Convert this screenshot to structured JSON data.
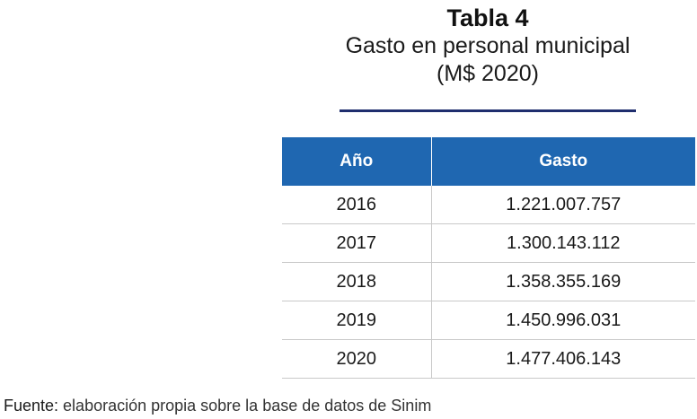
{
  "title": {
    "label": "Tabla 4",
    "subtitle": "Gasto en personal municipal",
    "unit": "(M$ 2020)"
  },
  "table": {
    "headers": [
      "Año",
      "Gasto"
    ],
    "rows": [
      {
        "year": "2016",
        "spend": "1.221.007.757"
      },
      {
        "year": "2017",
        "spend": "1.300.143.112"
      },
      {
        "year": "2018",
        "spend": "1.358.355.169"
      },
      {
        "year": "2019",
        "spend": "1.450.996.031"
      },
      {
        "year": "2020",
        "spend": "1.477.406.143"
      }
    ]
  },
  "source": {
    "label": "Fuente:",
    "text": " elaboración propia sobre la base de datos de Sinim"
  },
  "colors": {
    "header_bg": "#1f67b1",
    "rule": "#1f2e6e"
  }
}
